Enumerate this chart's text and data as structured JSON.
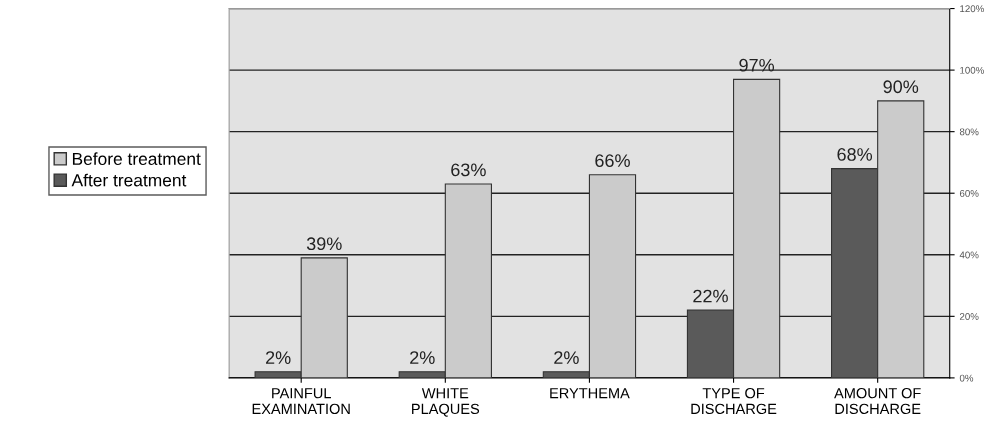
{
  "chart_data": {
    "type": "bar",
    "categories": [
      "PAINFUL\nEXAMINATION",
      "WHITE\nPLAQUES",
      "ERYTHEMA",
      "TYPE OF\nDISCHARGE",
      "AMOUNT OF\nDISCHARGE"
    ],
    "series": [
      {
        "name": "After treatment",
        "color": "#5a5a5a",
        "values": [
          2,
          2,
          2,
          22,
          68
        ],
        "value_labels": [
          "2%",
          "2%",
          "2%",
          "22%",
          "68%"
        ]
      },
      {
        "name": "Before treatment",
        "color": "#cbcbcb",
        "values": [
          39,
          63,
          66,
          97,
          90
        ],
        "value_labels": [
          "39%",
          "63%",
          "66%",
          "97%",
          "90%"
        ]
      }
    ],
    "ylim": [
      0,
      120
    ],
    "yticks": [
      {
        "value": 0,
        "label": "0%"
      },
      {
        "value": 20,
        "label": "20%"
      },
      {
        "value": 40,
        "label": "40%"
      },
      {
        "value": 60,
        "label": "60%"
      },
      {
        "value": 80,
        "label": "80%"
      },
      {
        "value": 100,
        "label": "100%"
      },
      {
        "value": 120,
        "label": "120%"
      }
    ],
    "grid": "y",
    "legend": "left"
  }
}
